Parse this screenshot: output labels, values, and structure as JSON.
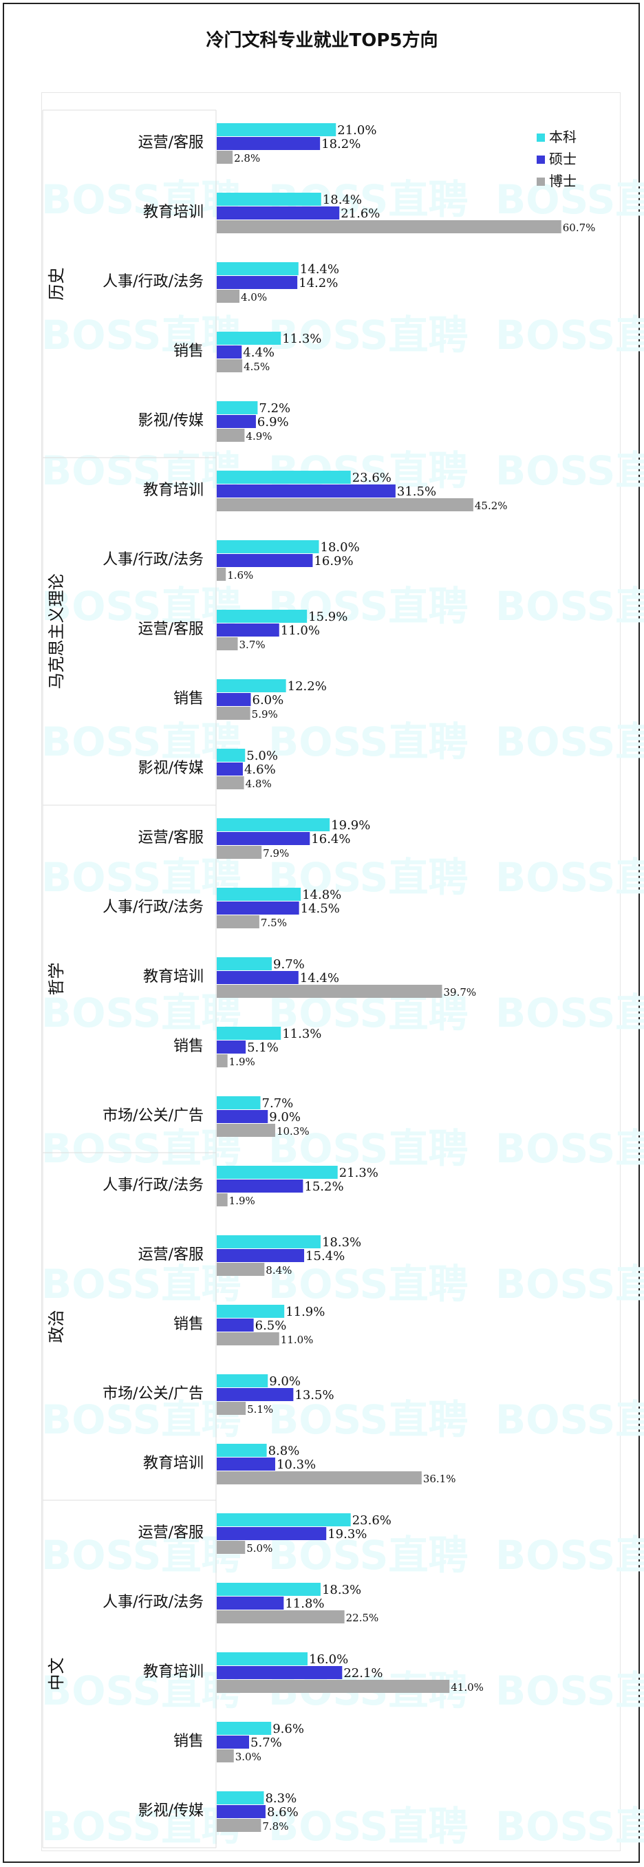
{
  "page_title": "冷门文科专业就业TOP5方向",
  "legend": [
    {
      "name": "本科",
      "color": "#35dde6"
    },
    {
      "name": "硕士",
      "color": "#3a39d8"
    },
    {
      "name": "博士",
      "color": "#a8a8a8"
    }
  ],
  "watermark": "BOSS直聘",
  "chart_data": {
    "type": "bar",
    "orientation": "horizontal",
    "title": "冷门文科专业就业TOP5方向",
    "series_names": [
      "本科",
      "硕士",
      "博士"
    ],
    "legend_position": "top-right",
    "grid": false,
    "groups": [
      {
        "name": "历史",
        "categories": [
          {
            "label": "运营/客服",
            "values": [
              21.0,
              18.2,
              2.8
            ]
          },
          {
            "label": "教育培训",
            "values": [
              18.4,
              21.6,
              60.7
            ]
          },
          {
            "label": "人事/行政/法务",
            "values": [
              14.4,
              14.2,
              4.0
            ]
          },
          {
            "label": "销售",
            "values": [
              11.3,
              4.4,
              4.5
            ]
          },
          {
            "label": "影视/传媒",
            "values": [
              7.2,
              6.9,
              4.9
            ]
          }
        ]
      },
      {
        "name": "马克思主义理论",
        "categories": [
          {
            "label": "教育培训",
            "values": [
              23.6,
              31.5,
              45.2
            ]
          },
          {
            "label": "人事/行政/法务",
            "values": [
              18.0,
              16.9,
              1.6
            ]
          },
          {
            "label": "运营/客服",
            "values": [
              15.9,
              11.0,
              3.7
            ]
          },
          {
            "label": "销售",
            "values": [
              12.2,
              6.0,
              5.9
            ]
          },
          {
            "label": "影视/传媒",
            "values": [
              5.0,
              4.6,
              4.8
            ]
          }
        ]
      },
      {
        "name": "哲学",
        "categories": [
          {
            "label": "运营/客服",
            "values": [
              19.9,
              16.4,
              7.9
            ]
          },
          {
            "label": "人事/行政/法务",
            "values": [
              14.8,
              14.5,
              7.5
            ]
          },
          {
            "label": "教育培训",
            "values": [
              9.7,
              14.4,
              39.7
            ]
          },
          {
            "label": "销售",
            "values": [
              11.3,
              5.1,
              1.9
            ]
          },
          {
            "label": "市场/公关/广告",
            "values": [
              7.7,
              9.0,
              10.3
            ]
          }
        ]
      },
      {
        "name": "政治",
        "categories": [
          {
            "label": "人事/行政/法务",
            "values": [
              21.3,
              15.2,
              1.9
            ]
          },
          {
            "label": "运营/客服",
            "values": [
              18.3,
              15.4,
              8.4
            ]
          },
          {
            "label": "销售",
            "values": [
              11.9,
              6.5,
              11.0
            ]
          },
          {
            "label": "市场/公关/广告",
            "values": [
              9.0,
              13.5,
              5.1
            ]
          },
          {
            "label": "教育培训",
            "values": [
              8.8,
              10.3,
              36.1
            ]
          }
        ]
      },
      {
        "name": "中文",
        "categories": [
          {
            "label": "运营/客服",
            "values": [
              23.6,
              19.3,
              5.0
            ]
          },
          {
            "label": "人事/行政/法务",
            "values": [
              18.3,
              11.8,
              22.5
            ]
          },
          {
            "label": "教育培训",
            "values": [
              16.0,
              22.1,
              41.0
            ]
          },
          {
            "label": "销售",
            "values": [
              9.6,
              5.7,
              3.0
            ]
          },
          {
            "label": "影视/传媒",
            "values": [
              8.3,
              8.6,
              7.8
            ]
          }
        ]
      }
    ]
  }
}
